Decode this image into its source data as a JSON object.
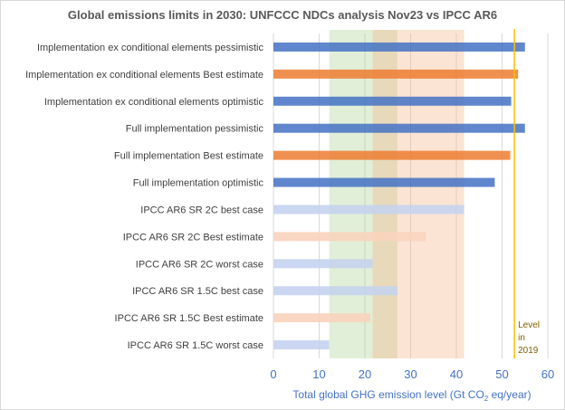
{
  "chart_data": {
    "type": "bar",
    "orientation": "horizontal",
    "title": "Global emissions limits in 2030: UNFCCC NDCs analysis Nov23  vs IPCC AR6",
    "xlabel": "Total global GHG emission level (Gt CO2 eq/year)",
    "xlabel_parts": {
      "pre": "Total global GHG emission level (Gt CO",
      "sub": "2",
      "post": " eq/year)"
    },
    "xlim": [
      0,
      60
    ],
    "xticks": [
      "0",
      "10",
      "20",
      "30",
      "40",
      "50",
      "60"
    ],
    "grid": true,
    "categories": [
      "Implementation ex conditional elements pessimistic",
      "Implementation ex conditional elements Best estimate",
      "Implementation ex conditional elements optimistic",
      "Full implementation pessimistic",
      "Full implementation Best estimate",
      "Full implementation optimistic",
      "IPCC AR6 SR 2C best case",
      "IPCC AR6 SR 2C Best estimate",
      "IPCC AR6 SR 2C worst case",
      "IPCC AR6 SR 1.5C best case",
      "IPCC AR6 SR 1.5C Best estimate",
      "IPCC AR6 SR 1.5C worst case"
    ],
    "values": [
      55.0,
      53.5,
      52.0,
      55.0,
      51.8,
      48.4,
      41.7,
      33.3,
      21.7,
      27.1,
      21.2,
      12.2
    ],
    "bar_colors": [
      "#4472c4",
      "#ed7d31",
      "#4472c4",
      "#4472c4",
      "#ed7d31",
      "#4472c4",
      "#c5d3ee",
      "#f9d3bc",
      "#c5d3ee",
      "#c5d3ee",
      "#f9d3bc",
      "#c5d3ee"
    ],
    "bands": [
      {
        "range": [
          12.2,
          27.1
        ],
        "color": "#a9d18e"
      },
      {
        "range": [
          21.7,
          41.7
        ],
        "color": "#f4b183"
      }
    ],
    "reference_line": {
      "value": 52.7,
      "color": "#ffc000",
      "label": [
        "Level",
        "in",
        "2019"
      ]
    }
  }
}
